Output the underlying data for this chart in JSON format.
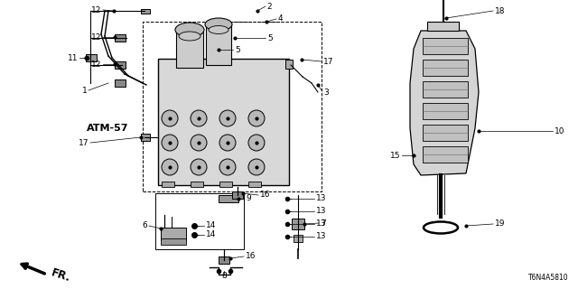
{
  "bg_color": "#ffffff",
  "title_code": "T6N4A5810",
  "atm_label": "ATM-57",
  "fr_label": "FR.",
  "fig_width": 6.4,
  "fig_height": 3.2,
  "lfs": 6.5
}
